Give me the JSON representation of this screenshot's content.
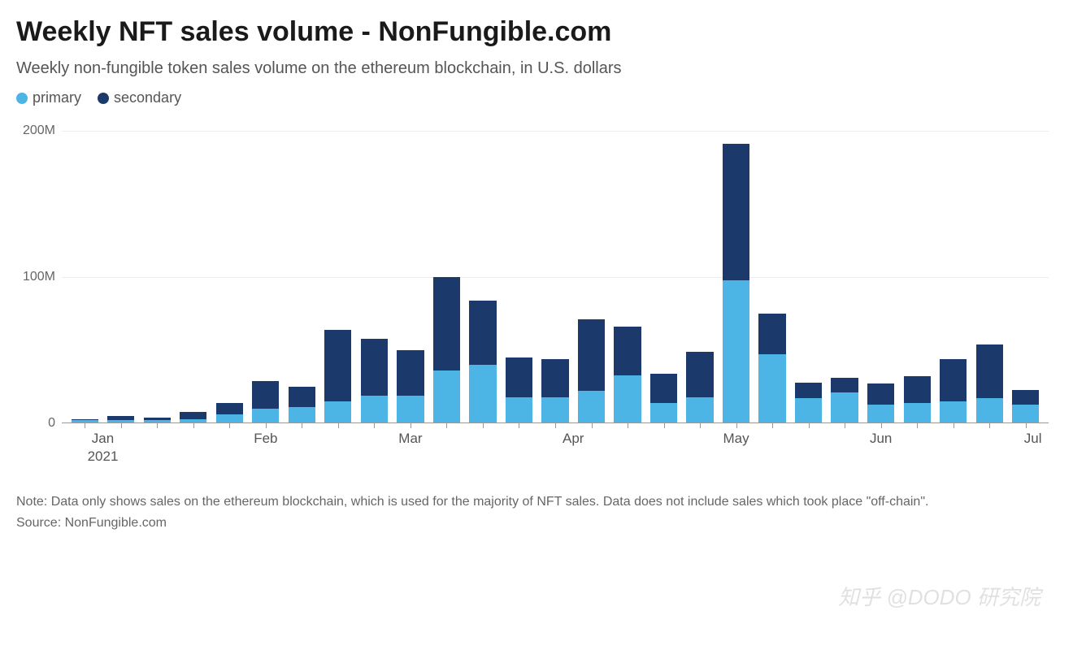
{
  "title": "Weekly NFT sales volume - NonFungible.com",
  "subtitle": "Weekly non-fungible token sales volume on the ethereum blockchain, in U.S. dollars",
  "legend": [
    {
      "label": "primary",
      "color": "#4db4e6"
    },
    {
      "label": "secondary",
      "color": "#1b3a6b"
    }
  ],
  "chart": {
    "type": "stacked-bar",
    "ylim": [
      0,
      200
    ],
    "yticks": [
      {
        "value": 0,
        "label": "0"
      },
      {
        "value": 100,
        "label": "100M"
      },
      {
        "value": 200,
        "label": "200M"
      }
    ],
    "grid_color": "#ececec",
    "baseline_color": "#999999",
    "background_color": "#ffffff",
    "colors": {
      "primary": "#4db4e6",
      "secondary": "#1b3a6b"
    },
    "bar_gap_ratio": 0.18,
    "data": [
      {
        "primary": 2,
        "secondary": 1
      },
      {
        "primary": 2,
        "secondary": 3
      },
      {
        "primary": 2,
        "secondary": 2
      },
      {
        "primary": 3,
        "secondary": 5
      },
      {
        "primary": 6,
        "secondary": 8
      },
      {
        "primary": 10,
        "secondary": 19
      },
      {
        "primary": 11,
        "secondary": 14
      },
      {
        "primary": 15,
        "secondary": 49
      },
      {
        "primary": 19,
        "secondary": 39
      },
      {
        "primary": 19,
        "secondary": 31
      },
      {
        "primary": 36,
        "secondary": 64
      },
      {
        "primary": 40,
        "secondary": 44
      },
      {
        "primary": 18,
        "secondary": 27
      },
      {
        "primary": 18,
        "secondary": 26
      },
      {
        "primary": 22,
        "secondary": 49
      },
      {
        "primary": 33,
        "secondary": 33
      },
      {
        "primary": 14,
        "secondary": 20
      },
      {
        "primary": 18,
        "secondary": 31
      },
      {
        "primary": 98,
        "secondary": 93
      },
      {
        "primary": 47,
        "secondary": 28
      },
      {
        "primary": 17,
        "secondary": 11
      },
      {
        "primary": 21,
        "secondary": 10
      },
      {
        "primary": 13,
        "secondary": 14
      },
      {
        "primary": 14,
        "secondary": 18
      },
      {
        "primary": 15,
        "secondary": 29
      },
      {
        "primary": 17,
        "secondary": 37
      },
      {
        "primary": 13,
        "secondary": 10
      }
    ],
    "x_tick_marks": [
      0,
      1,
      2,
      3,
      4,
      5,
      6,
      7,
      8,
      9,
      10,
      11,
      12,
      13,
      14,
      15,
      16,
      17,
      18,
      19,
      20,
      21,
      22,
      23,
      24,
      25,
      26
    ],
    "x_labels": [
      {
        "index": 0.5,
        "text": "Jan\n2021"
      },
      {
        "index": 5,
        "text": "Feb"
      },
      {
        "index": 9,
        "text": "Mar"
      },
      {
        "index": 13.5,
        "text": "Apr"
      },
      {
        "index": 18,
        "text": "May"
      },
      {
        "index": 22,
        "text": "Jun"
      },
      {
        "index": 26.2,
        "text": "Jul"
      }
    ]
  },
  "footnote": "Note: Data only shows sales on the ethereum blockchain, which is used for the majority of NFT sales. Data does not include sales which took place \"off-chain\".",
  "source": "Source: NonFungible.com",
  "watermark": "知乎 @DODO 研究院"
}
